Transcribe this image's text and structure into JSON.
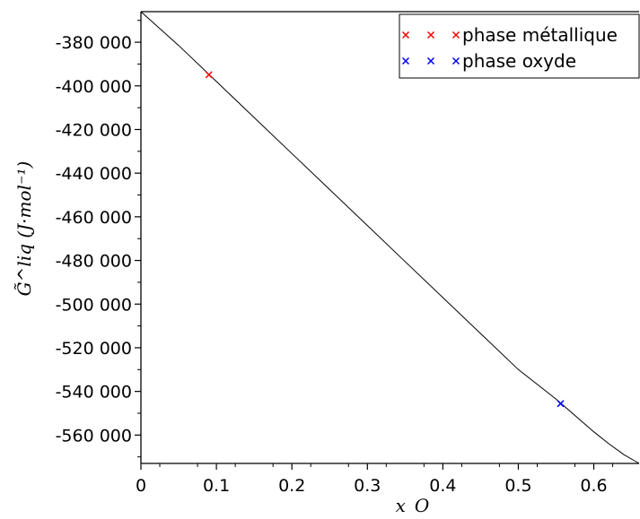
{
  "chart_data": {
    "type": "line",
    "title": "",
    "xlabel": "x_O",
    "ylabel": "G̃^liq (J·mol⁻¹)",
    "xlim": [
      0,
      0.66
    ],
    "ylim": [
      -573000,
      -366000
    ],
    "x_ticks": [
      0,
      0.1,
      0.2,
      0.3,
      0.4,
      0.5,
      0.6
    ],
    "x_tick_labels": [
      "0",
      "0.1",
      "0.2",
      "0.3",
      "0.4",
      "0.5",
      "0.6"
    ],
    "y_ticks": [
      -380000,
      -400000,
      -420000,
      -440000,
      -460000,
      -480000,
      -500000,
      -520000,
      -540000,
      -560000
    ],
    "y_tick_labels": [
      "-380 000",
      "-400 000",
      "-420 000",
      "-440 000",
      "-460 000",
      "-480 000",
      "-500 000",
      "-520 000",
      "-540 000",
      "-560 000"
    ],
    "grid": false,
    "legend_position": "top-right",
    "curve": {
      "color": "#000000",
      "x": [
        0,
        0.05,
        0.1,
        0.15,
        0.2,
        0.25,
        0.3,
        0.35,
        0.4,
        0.45,
        0.5,
        0.55,
        0.6,
        0.62,
        0.64,
        0.66
      ],
      "y": [
        -366000,
        -381500,
        -398000,
        -414500,
        -431000,
        -447500,
        -464000,
        -480500,
        -497000,
        -513500,
        -530000,
        -543500,
        -558500,
        -564000,
        -569000,
        -573000
      ]
    },
    "series": [
      {
        "name": "phase métallique",
        "marker": "x",
        "color": "#ff0000",
        "points": [
          {
            "x": 0.09,
            "y": -394900
          }
        ]
      },
      {
        "name": "phase oxyde",
        "marker": "x",
        "color": "#0000ff",
        "points": [
          {
            "x": 0.556,
            "y": -545600
          }
        ]
      }
    ]
  }
}
